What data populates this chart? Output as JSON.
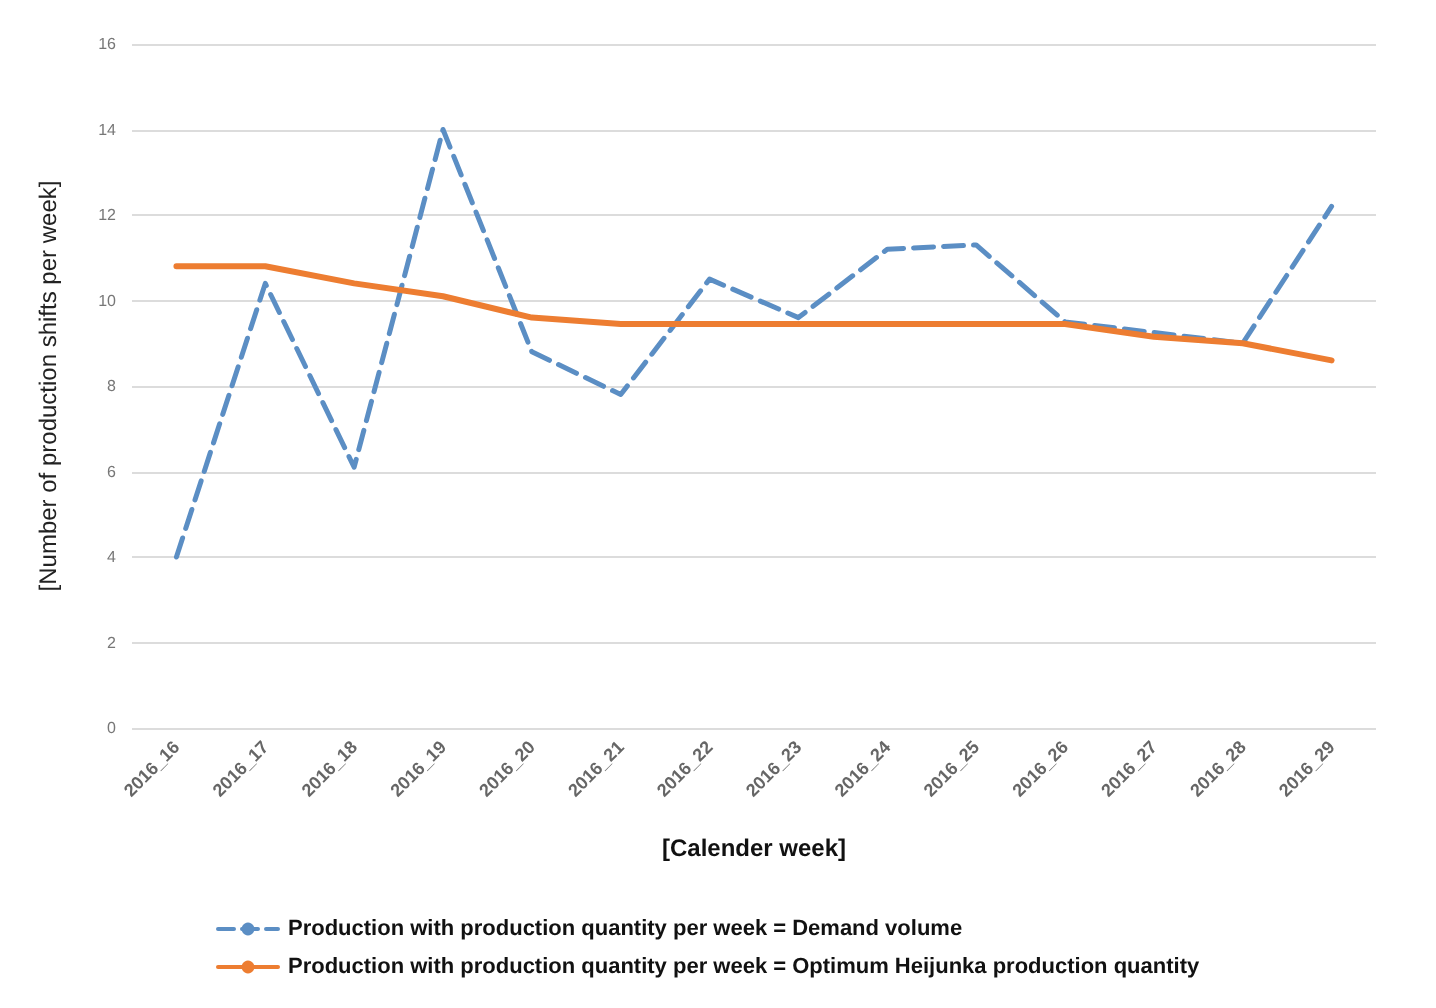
{
  "chart_data": {
    "type": "line",
    "xlabel": "[Calender week]",
    "ylabel": "[Number of production shifts per week]",
    "categories": [
      "2016_16",
      "2016_17",
      "2016_18",
      "2016_19",
      "2016_20",
      "2016_21",
      "2016_22",
      "2016_23",
      "2016_24",
      "2016_25",
      "2016_26",
      "2016_27",
      "2016_28",
      "2016_29"
    ],
    "series": [
      {
        "name": "Production with production quantity per week = Demand volume",
        "color": "#5b8ec4",
        "line_style": "dashed",
        "values": [
          4,
          10.4,
          6.1,
          14,
          8.8,
          7.8,
          10.5,
          9.6,
          11.2,
          11.3,
          9.5,
          null,
          9.0,
          12.2
        ]
      },
      {
        "name": "Production with production quantity per week = Optimum Heijunka production quantity",
        "color": "#ed7d31",
        "line_style": "solid",
        "values": [
          10.8,
          10.8,
          10.4,
          10.1,
          9.6,
          9.45,
          9.45,
          9.45,
          9.45,
          9.45,
          9.45,
          9.15,
          9.0,
          8.6
        ]
      }
    ],
    "ylim": [
      0,
      16
    ],
    "yticks": [
      0,
      2,
      4,
      6,
      8,
      10,
      12,
      14,
      16
    ],
    "grid": "y",
    "legend": "bottom",
    "marker": "none"
  }
}
